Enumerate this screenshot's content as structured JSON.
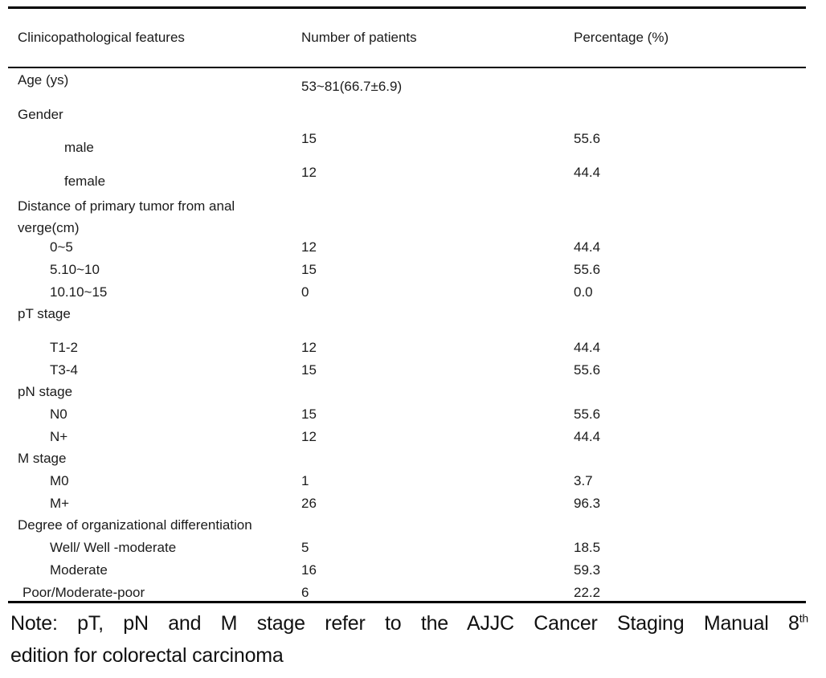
{
  "table": {
    "columns": {
      "features": "Clinicopathological features",
      "patients": "Number of patients",
      "percentage": "Percentage (%)"
    },
    "rows": [
      {
        "label": "Age (ys)",
        "value": "53~81(66.7±6.9)",
        "percent": ""
      },
      {
        "label": "Gender",
        "value": "",
        "percent": ""
      },
      {
        "label": "male",
        "value": "15",
        "percent": "55.6"
      },
      {
        "label": "female",
        "value": "12",
        "percent": "44.4"
      },
      {
        "label": "Distance of primary tumor from anal verge(cm)",
        "value": "",
        "percent": ""
      },
      {
        "label": "0~5",
        "value": "12",
        "percent": "44.4"
      },
      {
        "label": "5.10~10",
        "value": "15",
        "percent": "55.6"
      },
      {
        "label": "10.10~15",
        "value": "0",
        "percent": "0.0"
      },
      {
        "label": "pT stage",
        "value": "",
        "percent": ""
      },
      {
        "label": "T1-2",
        "value": "12",
        "percent": "44.4"
      },
      {
        "label": "T3-4",
        "value": "15",
        "percent": "55.6"
      },
      {
        "label": "pN stage",
        "value": "",
        "percent": ""
      },
      {
        "label": "N0",
        "value": "15",
        "percent": "55.6"
      },
      {
        "label": "N+",
        "value": "12",
        "percent": "44.4"
      },
      {
        "label": "M stage",
        "value": "",
        "percent": ""
      },
      {
        "label": "M0",
        "value": "1",
        "percent": "3.7"
      },
      {
        "label": "M+",
        "value": "26",
        "percent": "96.3"
      },
      {
        "label": "Degree of organizational differentiation",
        "value": "",
        "percent": ""
      },
      {
        "label": "Well/ Well -moderate",
        "value": "5",
        "percent": "18.5"
      },
      {
        "label": "Moderate",
        "value": "16",
        "percent": "59.3"
      },
      {
        "label": "Poor/Moderate-poor",
        "value": "6",
        "percent": "22.2"
      }
    ]
  },
  "note": {
    "line1_text": "Note: pT, pN and M stage refer to the AJJC Cancer Staging Manual 8",
    "superscript": "th",
    "line2_text": "edition for colorectal carcinoma"
  }
}
